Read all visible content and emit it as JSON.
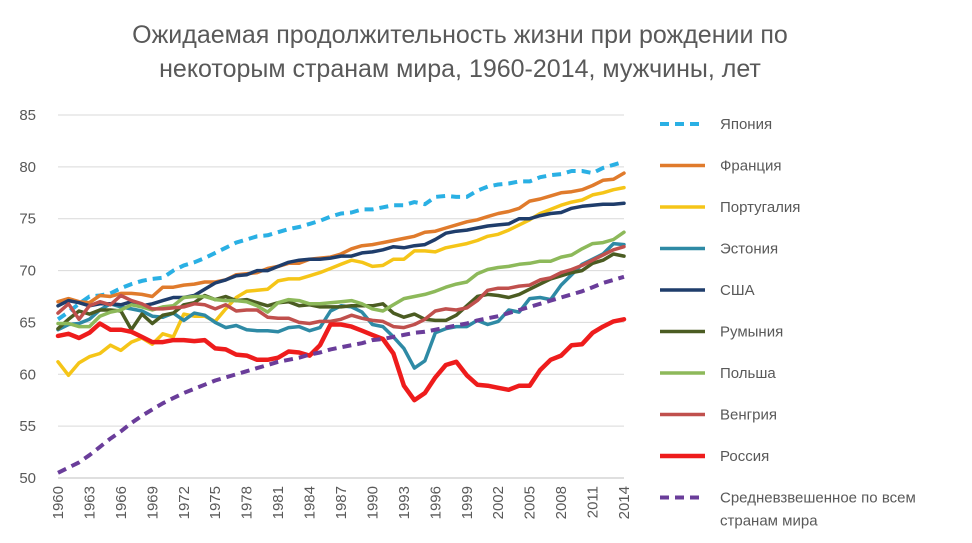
{
  "chart_data": {
    "type": "line",
    "title_line1": "Ожидаемая продолжительность жизни при рождении по",
    "title_line2": "некоторым странам мира, 1960-2014, мужчины, лет",
    "x": [
      1960,
      1961,
      1962,
      1963,
      1964,
      1965,
      1966,
      1967,
      1968,
      1969,
      1970,
      1971,
      1972,
      1973,
      1974,
      1975,
      1976,
      1977,
      1978,
      1979,
      1980,
      1981,
      1982,
      1983,
      1984,
      1985,
      1986,
      1987,
      1988,
      1989,
      1990,
      1991,
      1992,
      1993,
      1994,
      1995,
      1996,
      1997,
      1998,
      1999,
      2000,
      2001,
      2002,
      2003,
      2004,
      2005,
      2006,
      2007,
      2008,
      2009,
      2010,
      2011,
      2012,
      2013,
      2014
    ],
    "x_ticks": [
      "1960",
      "1963",
      "1966",
      "1969",
      "1972",
      "1975",
      "1978",
      "1981",
      "1984",
      "1987",
      "1990",
      "1993",
      "1996",
      "1999",
      "2002",
      "2005",
      "2008",
      "2011",
      "2014"
    ],
    "ylim": [
      50,
      85
    ],
    "y_ticks": [
      "50",
      "55",
      "60",
      "65",
      "70",
      "75",
      "80",
      "85"
    ],
    "grid": "horizontal",
    "legend_position": "right",
    "series": [
      {
        "name": "Япония",
        "color": "#2ab0e4",
        "dash": "dashed",
        "width": 4,
        "values": [
          65.3,
          66.0,
          66.8,
          67.5,
          67.6,
          67.8,
          68.3,
          68.7,
          69.0,
          69.2,
          69.3,
          70.0,
          70.5,
          70.8,
          71.2,
          71.7,
          72.2,
          72.7,
          73.0,
          73.3,
          73.4,
          73.7,
          74.0,
          74.2,
          74.5,
          74.8,
          75.2,
          75.5,
          75.6,
          75.9,
          75.9,
          76.1,
          76.3,
          76.3,
          76.6,
          76.4,
          77.1,
          77.2,
          77.1,
          77.1,
          77.7,
          78.1,
          78.3,
          78.4,
          78.6,
          78.6,
          79.0,
          79.2,
          79.3,
          79.6,
          79.6,
          79.4,
          79.9,
          80.2,
          80.5
        ]
      },
      {
        "name": "Франция",
        "color": "#e07b2c",
        "dash": "solid",
        "width": 3.5,
        "values": [
          67.0,
          67.3,
          67.0,
          66.9,
          67.6,
          67.5,
          67.8,
          67.8,
          67.7,
          67.5,
          68.4,
          68.4,
          68.6,
          68.7,
          68.9,
          68.9,
          69.1,
          69.6,
          69.7,
          69.8,
          70.2,
          70.4,
          70.7,
          70.7,
          71.1,
          71.2,
          71.3,
          71.6,
          72.1,
          72.4,
          72.5,
          72.7,
          72.9,
          73.1,
          73.3,
          73.7,
          73.8,
          74.1,
          74.4,
          74.7,
          74.9,
          75.2,
          75.5,
          75.7,
          76.0,
          76.7,
          76.9,
          77.2,
          77.5,
          77.6,
          77.8,
          78.2,
          78.7,
          78.8,
          79.4
        ]
      },
      {
        "name": "Португалия",
        "color": "#f5c518",
        "dash": "solid",
        "width": 3.5,
        "values": [
          61.2,
          59.9,
          61.1,
          61.7,
          62.0,
          62.8,
          62.3,
          63.1,
          63.5,
          62.9,
          63.9,
          63.6,
          65.8,
          65.6,
          65.6,
          65.1,
          66.3,
          67.4,
          68.0,
          68.1,
          68.2,
          69.0,
          69.2,
          69.2,
          69.5,
          69.8,
          70.2,
          70.6,
          71.0,
          70.8,
          70.4,
          70.5,
          71.1,
          71.1,
          71.9,
          71.9,
          71.8,
          72.2,
          72.4,
          72.6,
          72.9,
          73.3,
          73.5,
          73.9,
          74.4,
          74.9,
          75.5,
          75.9,
          76.3,
          76.6,
          76.8,
          77.3,
          77.5,
          77.8,
          78.0
        ]
      },
      {
        "name": "Эстония",
        "color": "#2e8aa5",
        "dash": "solid",
        "width": 3.5,
        "values": [
          64.3,
          64.8,
          64.9,
          65.3,
          66.2,
          66.8,
          66.5,
          66.3,
          66.1,
          65.6,
          65.5,
          65.9,
          65.2,
          65.9,
          65.7,
          65.0,
          64.5,
          64.7,
          64.3,
          64.2,
          64.2,
          64.1,
          64.5,
          64.6,
          64.2,
          64.5,
          66.1,
          66.6,
          66.5,
          66.0,
          64.8,
          64.6,
          63.6,
          62.5,
          60.6,
          61.3,
          64.0,
          64.4,
          64.6,
          64.6,
          65.2,
          64.8,
          65.1,
          66.2,
          66.0,
          67.3,
          67.4,
          67.2,
          68.6,
          69.6,
          70.6,
          71.1,
          71.6,
          72.6,
          72.5
        ]
      },
      {
        "name": "США",
        "color": "#1f3d6b",
        "dash": "solid",
        "width": 3.5,
        "values": [
          66.6,
          67.1,
          66.9,
          66.6,
          66.8,
          66.8,
          66.7,
          67.0,
          66.6,
          66.8,
          67.1,
          67.4,
          67.4,
          67.6,
          68.2,
          68.8,
          69.1,
          69.5,
          69.6,
          70.0,
          70.0,
          70.4,
          70.8,
          71.0,
          71.1,
          71.1,
          71.2,
          71.4,
          71.4,
          71.7,
          71.8,
          72.0,
          72.3,
          72.2,
          72.4,
          72.5,
          73.0,
          73.6,
          73.8,
          73.9,
          74.1,
          74.3,
          74.4,
          74.5,
          75.0,
          75.0,
          75.3,
          75.5,
          75.6,
          76.0,
          76.2,
          76.3,
          76.4,
          76.4,
          76.5
        ]
      },
      {
        "name": "Румыния",
        "color": "#4b5c22",
        "dash": "solid",
        "width": 3.5,
        "values": [
          64.4,
          65.3,
          66.1,
          65.8,
          66.2,
          66.2,
          66.1,
          64.3,
          65.8,
          64.9,
          65.7,
          65.9,
          66.7,
          66.9,
          67.6,
          67.2,
          67.5,
          67.1,
          67.2,
          66.9,
          66.6,
          66.9,
          67.0,
          66.6,
          66.7,
          66.5,
          66.5,
          66.5,
          66.6,
          66.6,
          66.6,
          66.8,
          65.9,
          65.5,
          65.8,
          65.3,
          65.2,
          65.2,
          65.7,
          66.6,
          67.5,
          67.7,
          67.6,
          67.4,
          67.7,
          68.2,
          68.7,
          69.2,
          69.5,
          69.8,
          70.0,
          70.7,
          71.0,
          71.6,
          71.4
        ]
      },
      {
        "name": "Польша",
        "color": "#8db95a",
        "dash": "solid",
        "width": 3.5,
        "values": [
          64.9,
          64.9,
          64.6,
          64.6,
          65.6,
          66.0,
          66.2,
          66.7,
          66.5,
          66.2,
          66.5,
          66.6,
          67.4,
          67.5,
          67.5,
          67.2,
          67.1,
          67.1,
          67.0,
          66.6,
          66.0,
          66.9,
          67.2,
          67.1,
          66.8,
          66.8,
          66.9,
          67.0,
          67.1,
          66.8,
          66.3,
          66.1,
          66.7,
          67.3,
          67.5,
          67.7,
          68.0,
          68.4,
          68.7,
          68.9,
          69.7,
          70.1,
          70.3,
          70.4,
          70.6,
          70.7,
          70.9,
          70.9,
          71.3,
          71.5,
          72.1,
          72.6,
          72.7,
          73.0,
          73.7
        ]
      },
      {
        "name": "Венгрия",
        "color": "#c0504d",
        "dash": "solid",
        "width": 3.5,
        "values": [
          65.9,
          66.8,
          65.3,
          66.6,
          67.0,
          66.7,
          67.6,
          67.1,
          66.8,
          66.3,
          66.3,
          66.4,
          66.5,
          66.8,
          66.7,
          66.3,
          66.7,
          66.1,
          66.2,
          66.2,
          65.5,
          65.4,
          65.4,
          65.0,
          64.9,
          65.1,
          65.1,
          65.3,
          65.7,
          65.4,
          65.2,
          65.1,
          64.6,
          64.5,
          64.8,
          65.3,
          66.1,
          66.3,
          66.2,
          66.4,
          67.1,
          68.1,
          68.3,
          68.3,
          68.5,
          68.6,
          69.1,
          69.3,
          69.8,
          70.1,
          70.5,
          71.0,
          71.5,
          72.0,
          72.3
        ]
      },
      {
        "name": "Россия",
        "color": "#ee1c1c",
        "dash": "solid",
        "width": 4.5,
        "values": [
          63.7,
          63.9,
          63.5,
          64.0,
          64.9,
          64.3,
          64.3,
          64.1,
          63.6,
          63.1,
          63.1,
          63.3,
          63.3,
          63.2,
          63.3,
          62.5,
          62.4,
          61.9,
          61.8,
          61.4,
          61.4,
          61.6,
          62.2,
          62.1,
          61.8,
          62.8,
          64.8,
          64.8,
          64.6,
          64.2,
          63.8,
          63.4,
          62.0,
          58.9,
          57.5,
          58.2,
          59.7,
          60.9,
          61.2,
          59.9,
          59.0,
          58.9,
          58.7,
          58.5,
          58.9,
          58.9,
          60.4,
          61.4,
          61.8,
          62.8,
          62.9,
          64.0,
          64.6,
          65.1,
          65.3
        ]
      },
      {
        "name": "Средневзвешенное по всем странам мира",
        "name_line1": "Средневзвешенное по всем",
        "name_line2": "странам мира",
        "color": "#6a3d9a",
        "dash": "dashed",
        "width": 4,
        "values": [
          50.5,
          51.0,
          51.5,
          52.2,
          53.0,
          53.8,
          54.5,
          55.3,
          56.0,
          56.6,
          57.2,
          57.7,
          58.2,
          58.6,
          59.0,
          59.4,
          59.7,
          60.0,
          60.3,
          60.6,
          60.9,
          61.2,
          61.4,
          61.6,
          61.9,
          62.1,
          62.4,
          62.6,
          62.8,
          63.0,
          63.3,
          63.4,
          63.6,
          63.8,
          64.0,
          64.1,
          64.3,
          64.5,
          64.7,
          64.9,
          65.2,
          65.4,
          65.6,
          65.9,
          66.2,
          66.5,
          66.8,
          67.1,
          67.4,
          67.7,
          68.0,
          68.4,
          68.8,
          69.1,
          69.4
        ]
      }
    ]
  }
}
